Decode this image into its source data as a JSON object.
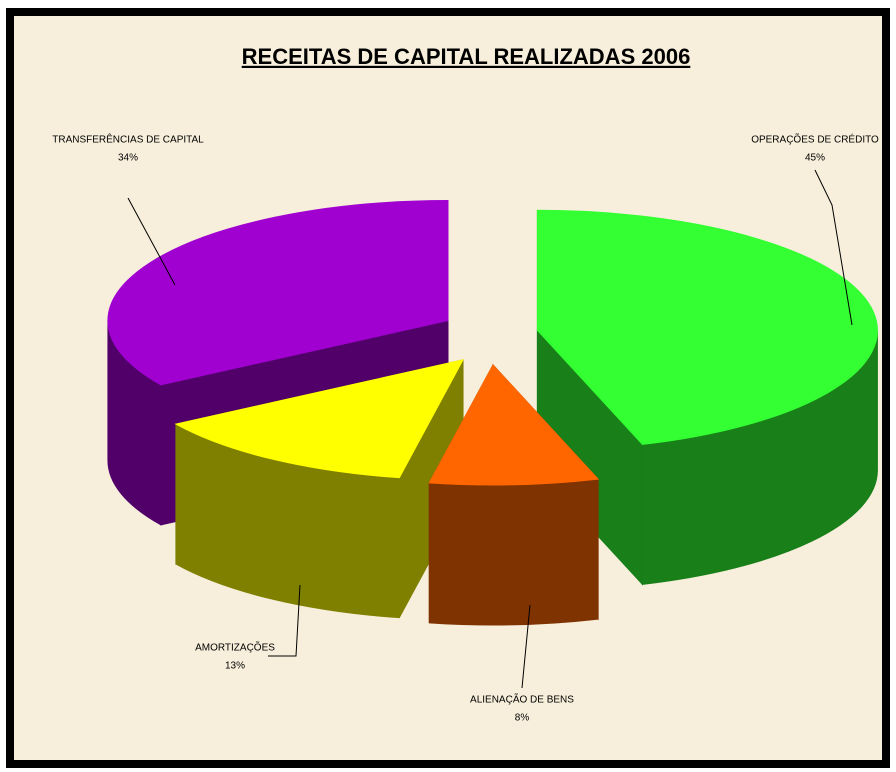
{
  "chart_data": {
    "type": "pie",
    "title": "RECEITAS DE CAPITAL REALIZADAS 2006",
    "categories": [
      "OPERAÇÕES DE CRÉDITO",
      "ALIENAÇÃO DE BENS",
      "AMORTIZAÇÕES",
      "TRANSFERÊNCIAS DE CAPITAL"
    ],
    "values": [
      45,
      8,
      13,
      34
    ],
    "value_labels": [
      "45%",
      "8%",
      "13%",
      "34%"
    ],
    "colors": [
      "#33ff33",
      "#ff6600",
      "#ffff00",
      "#a000d0"
    ]
  }
}
